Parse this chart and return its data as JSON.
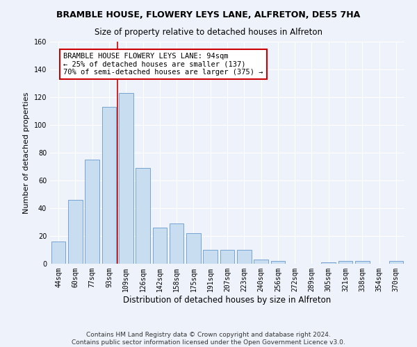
{
  "title": "BRAMBLE HOUSE, FLOWERY LEYS LANE, ALFRETON, DE55 7HA",
  "subtitle": "Size of property relative to detached houses in Alfreton",
  "xlabel": "Distribution of detached houses by size in Alfreton",
  "ylabel": "Number of detached properties",
  "bar_labels": [
    "44sqm",
    "60sqm",
    "77sqm",
    "93sqm",
    "109sqm",
    "126sqm",
    "142sqm",
    "158sqm",
    "175sqm",
    "191sqm",
    "207sqm",
    "223sqm",
    "240sqm",
    "256sqm",
    "272sqm",
    "289sqm",
    "305sqm",
    "321sqm",
    "338sqm",
    "354sqm",
    "370sqm"
  ],
  "bar_values": [
    16,
    46,
    75,
    113,
    123,
    69,
    26,
    29,
    22,
    10,
    10,
    10,
    3,
    2,
    0,
    0,
    1,
    2,
    2,
    0,
    2
  ],
  "bar_color": "#c9ddf0",
  "bar_edge_color": "#6699cc",
  "vline_color": "#cc0000",
  "annotation_text": "BRAMBLE HOUSE FLOWERY LEYS LANE: 94sqm\n← 25% of detached houses are smaller (137)\n70% of semi-detached houses are larger (375) →",
  "annotation_box_color": "#ffffff",
  "annotation_box_edge_color": "#cc0000",
  "ylim": [
    0,
    160
  ],
  "yticks": [
    0,
    20,
    40,
    60,
    80,
    100,
    120,
    140,
    160
  ],
  "footer": "Contains HM Land Registry data © Crown copyright and database right 2024.\nContains public sector information licensed under the Open Government Licence v3.0.",
  "bg_color": "#eef2fb",
  "plot_bg_color": "#eef2fb",
  "grid_color": "#ffffff",
  "title_fontsize": 9,
  "subtitle_fontsize": 8.5,
  "xlabel_fontsize": 8.5,
  "ylabel_fontsize": 8,
  "tick_fontsize": 7,
  "annotation_fontsize": 7.5,
  "footer_fontsize": 6.5
}
